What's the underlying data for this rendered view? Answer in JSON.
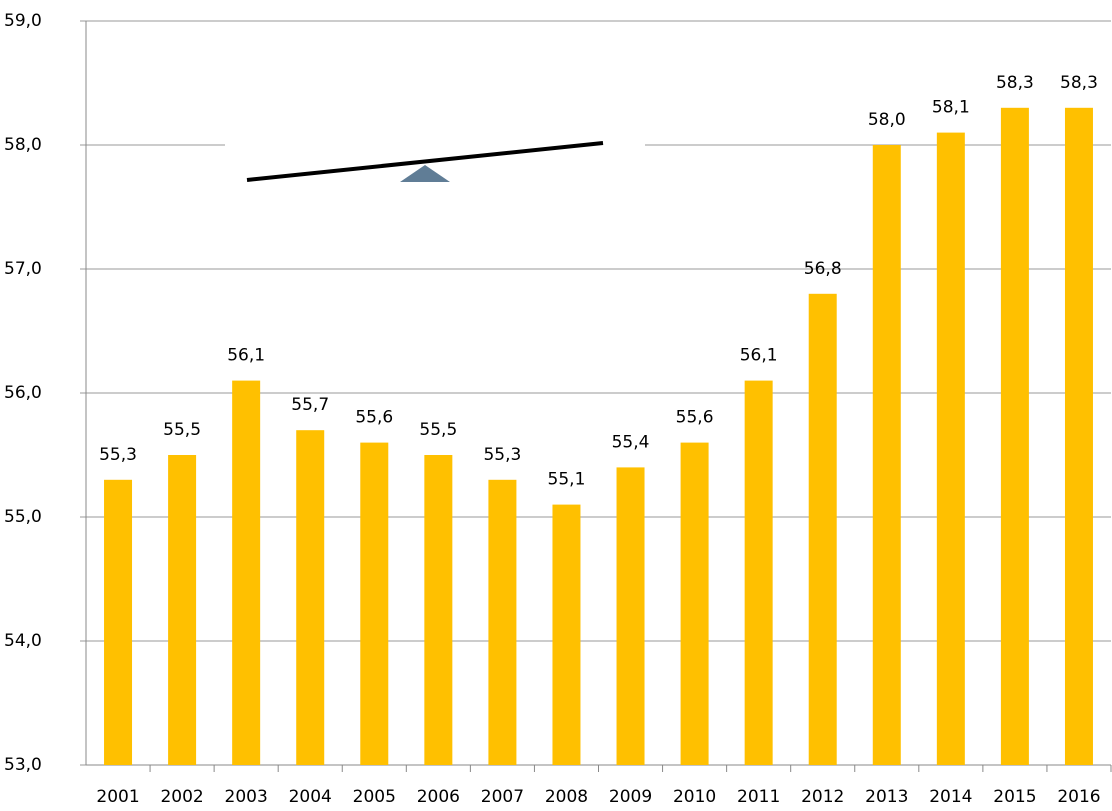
{
  "chart_data": {
    "type": "bar",
    "categories": [
      "2001",
      "2002",
      "2003",
      "2004",
      "2005",
      "2006",
      "2007",
      "2008",
      "2009",
      "2010",
      "2011",
      "2012",
      "2013",
      "2014",
      "2015",
      "2016"
    ],
    "values": [
      55.3,
      55.5,
      56.1,
      55.7,
      55.6,
      55.5,
      55.3,
      55.1,
      55.4,
      55.6,
      56.1,
      56.8,
      58.0,
      58.1,
      58.3,
      58.3
    ],
    "value_labels": [
      "55,3",
      "55,5",
      "56,1",
      "55,7",
      "55,6",
      "55,5",
      "55,3",
      "55,1",
      "55,4",
      "55,6",
      "56,1",
      "56,8",
      "58,0",
      "58,1",
      "58,3",
      "58,3"
    ],
    "color": "#ffc000",
    "ylim": [
      53,
      59
    ],
    "yticks": [
      {
        "value": 53,
        "label": "53,0"
      },
      {
        "value": 54,
        "label": "54,0"
      },
      {
        "value": 55,
        "label": "55,0"
      },
      {
        "value": 56,
        "label": "56,0"
      },
      {
        "value": 57,
        "label": "57,0"
      },
      {
        "value": 58,
        "label": "58,0"
      },
      {
        "value": 59,
        "label": "59,0"
      }
    ],
    "grid": true
  }
}
